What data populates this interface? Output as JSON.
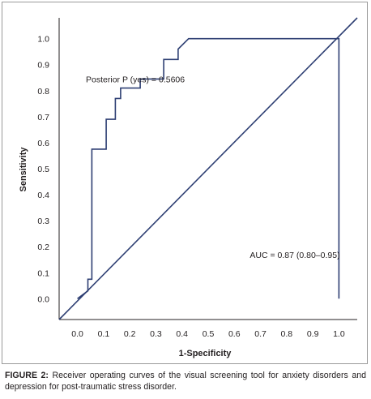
{
  "chart_data": {
    "type": "line",
    "title": "",
    "xlabel": "1-Specificity",
    "ylabel": "Sensitivity",
    "xlim": [
      -0.07,
      1.07
    ],
    "ylim": [
      -0.08,
      1.08
    ],
    "x_ticks": [
      "0.0",
      "0.1",
      "0.2",
      "0.3",
      "0.4",
      "0.5",
      "0.6",
      "0.7",
      "0.8",
      "0.9",
      "1.0"
    ],
    "y_ticks": [
      "0.0",
      "0.1",
      "0.2",
      "0.3",
      "0.4",
      "0.5",
      "0.6",
      "0.7",
      "0.8",
      "0.9",
      "1.0"
    ],
    "grid": false,
    "series": [
      {
        "name": "",
        "x": [
          0,
          0.04,
          0.04,
          0.055,
          0.055,
          0.11,
          0.11,
          0.145,
          0.145,
          0.165,
          0.165,
          0.19,
          0.19,
          0.24,
          0.24,
          0.33,
          0.33,
          0.385,
          0.385,
          0.425,
          1.0,
          1.0
        ],
        "y": [
          0,
          0.03,
          0.075,
          0.075,
          0.575,
          0.575,
          0.69,
          0.69,
          0.77,
          0.77,
          0.81,
          0.81,
          0.81,
          0.81,
          0.845,
          0.845,
          0.92,
          0.92,
          0.96,
          1.0,
          1.0,
          0
        ]
      },
      {
        "name": "",
        "x": [
          -0.07,
          1.07
        ],
        "y": [
          -0.08,
          1.08
        ]
      }
    ],
    "annotations": [
      {
        "text": "Posterior P (yes) = 0.5606",
        "x": 0.24,
        "y": 0.845
      },
      {
        "text": "AUC = 0.87 (0.80–0.95)",
        "x": 0.85,
        "y": 0.17
      }
    ],
    "line_color": "#2e3f73"
  },
  "caption": {
    "label": "FIGURE 2:",
    "text": "Receiver operating curves of the visual screening tool for anxiety disorders and depression for post-traumatic stress disorder."
  }
}
